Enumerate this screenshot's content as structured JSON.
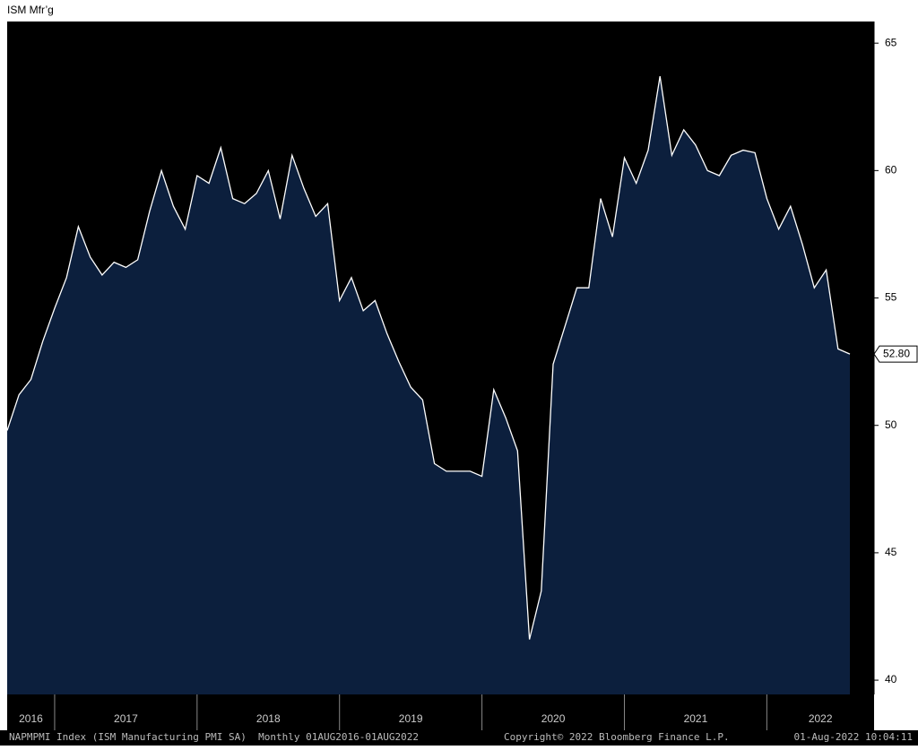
{
  "chart_data": {
    "type": "area",
    "title": "ISM Mfr’g",
    "period_labels": [
      "2016",
      "2017",
      "2018",
      "2019",
      "2020",
      "2021",
      "2022"
    ],
    "values": [
      49.8,
      51.2,
      51.8,
      53.3,
      54.6,
      55.8,
      57.8,
      56.6,
      55.9,
      56.4,
      56.2,
      56.5,
      58.4,
      60.0,
      58.6,
      57.7,
      59.8,
      59.5,
      60.9,
      58.9,
      58.7,
      59.1,
      60.0,
      58.1,
      60.6,
      59.3,
      58.2,
      58.7,
      54.9,
      55.8,
      54.5,
      54.9,
      53.6,
      52.5,
      51.5,
      51.0,
      48.5,
      48.2,
      48.2,
      48.2,
      48.0,
      51.4,
      50.3,
      49.0,
      41.6,
      43.5,
      52.4,
      53.9,
      55.4,
      55.4,
      58.9,
      57.4,
      60.5,
      59.5,
      60.8,
      63.7,
      60.6,
      61.6,
      61.0,
      60.0,
      59.8,
      60.6,
      60.8,
      60.7,
      58.9,
      57.7,
      58.6,
      57.1,
      55.4,
      56.1,
      53.0,
      52.8
    ],
    "value_labels": [
      null,
      null,
      null,
      null,
      null,
      null,
      null,
      null,
      null,
      null,
      null,
      null,
      null,
      null,
      null,
      null,
      null,
      null,
      null,
      null,
      null,
      null,
      null,
      null,
      null,
      null,
      null,
      null,
      null,
      null,
      null,
      null,
      null,
      null,
      null,
      null,
      null,
      null,
      null,
      null,
      null,
      null,
      null,
      null,
      null,
      null,
      null,
      null,
      null,
      null,
      null,
      null,
      null,
      null,
      null,
      null,
      null,
      null,
      null,
      null,
      null,
      null,
      null,
      null,
      null,
      null,
      null,
      null,
      null,
      null,
      null,
      "52.80"
    ],
    "color": "#0c1f3d",
    "line_color": "#ffffff",
    "ylim": [
      39.44,
      65.85
    ],
    "yticks": [
      40,
      45,
      50,
      55,
      60,
      65
    ]
  },
  "footer": {
    "left": "NAPMPMI Index (ISM Manufacturing PMI SA)  Monthly 01AUG2016-01AUG2022",
    "center": "Copyright© 2022 Bloomberg Finance L.P.",
    "right": "01-Aug-2022 10:04:11"
  }
}
